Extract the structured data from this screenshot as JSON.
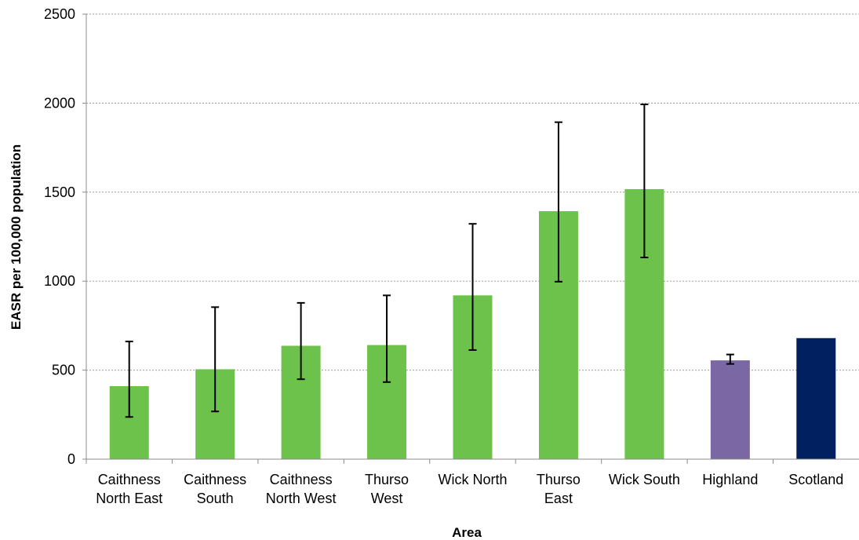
{
  "chart_data": {
    "type": "bar",
    "title": "",
    "xlabel": "Area",
    "ylabel": "EASR per 100,000 population",
    "ylim": [
      0,
      2500
    ],
    "yticks": [
      0,
      500,
      1000,
      1500,
      2000,
      2500
    ],
    "grid": true,
    "legend": "none",
    "categories": [
      [
        "Caithness",
        "North East"
      ],
      [
        "Caithness",
        "South"
      ],
      [
        "Caithness",
        "North West"
      ],
      [
        "Thurso",
        "West"
      ],
      [
        "Wick North"
      ],
      [
        "Thurso",
        "East"
      ],
      [
        "Wick South"
      ],
      [
        "Highland"
      ],
      [
        "Scotland"
      ]
    ],
    "values": [
      410,
      505,
      637,
      641,
      920,
      1393,
      1517,
      555,
      680
    ],
    "ci_lower": [
      237,
      268,
      449,
      433,
      613,
      997,
      1133,
      535,
      null
    ],
    "ci_upper": [
      661,
      854,
      878,
      920,
      1322,
      1893,
      1993,
      588,
      null
    ],
    "colors": [
      "#6cc24a",
      "#6cc24a",
      "#6cc24a",
      "#6cc24a",
      "#6cc24a",
      "#6cc24a",
      "#6cc24a",
      "#7a68a4",
      "#002060"
    ]
  }
}
